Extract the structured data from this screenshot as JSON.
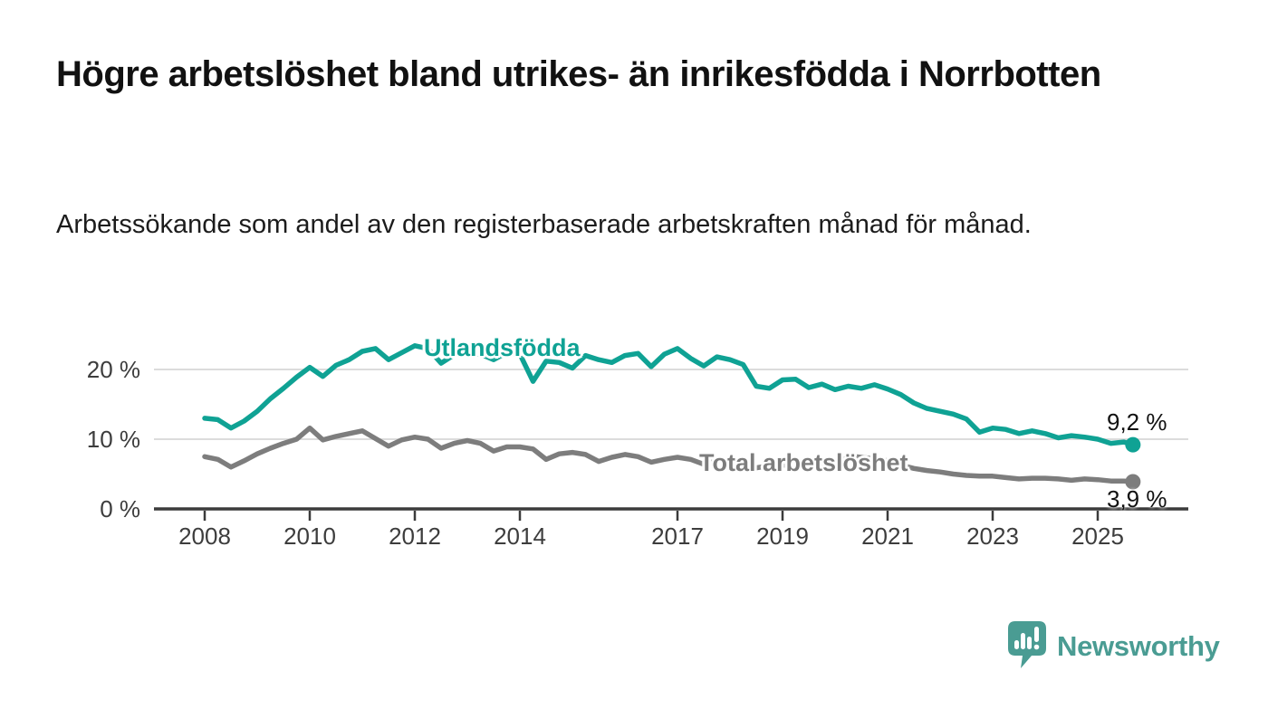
{
  "title": "Högre arbetslöshet bland utrikes- än inrikesfödda i Norrbotten",
  "subtitle": "Arbetssökande som andel av den registerbaserade arbetskraften månad för månad.",
  "branding": {
    "name": "Newsworthy",
    "logo_icon": "newsworthy-speech-bubble-bar-chart"
  },
  "colors": {
    "series_foreign_born": "#0fa294",
    "series_total": "#7d7d7d",
    "gridline": "#dcdcdc",
    "axis": "#3b3b3b",
    "tick_label": "#3d3d3d",
    "title_text": "#111111",
    "brand_teal": "#4a9c93"
  },
  "chart_data": {
    "type": "line",
    "title": "Högre arbetslöshet bland utrikes- än inrikesfödda i Norrbotten",
    "subtitle": "Arbetssökande som andel av den registerbaserade arbetskraften månad för månad.",
    "x_unit": "decimal_year",
    "x_ticks": [
      2008,
      2010,
      2012,
      2014,
      2017,
      2019,
      2021,
      2023,
      2025
    ],
    "xlim": [
      2007.2,
      2026.7
    ],
    "ylim": [
      0,
      25
    ],
    "y_ticks": [
      0,
      10,
      20
    ],
    "y_tick_labels": [
      "0 %",
      "10 %",
      "20 %"
    ],
    "grid": "horizontal-only",
    "legend_position": "inline-on-line",
    "series": [
      {
        "name": "Utlandsfödda",
        "color": "#0fa294",
        "end_value": 9.2,
        "end_label": "9,2 %",
        "points": [
          [
            2008.0,
            13.0
          ],
          [
            2008.25,
            12.8
          ],
          [
            2008.5,
            11.6
          ],
          [
            2008.75,
            12.6
          ],
          [
            2009.0,
            14.0
          ],
          [
            2009.25,
            15.8
          ],
          [
            2009.5,
            17.3
          ],
          [
            2009.75,
            18.9
          ],
          [
            2010.0,
            20.3
          ],
          [
            2010.25,
            19.0
          ],
          [
            2010.5,
            20.6
          ],
          [
            2010.75,
            21.4
          ],
          [
            2011.0,
            22.6
          ],
          [
            2011.25,
            23.0
          ],
          [
            2011.5,
            21.4
          ],
          [
            2011.75,
            22.4
          ],
          [
            2012.0,
            23.4
          ],
          [
            2012.25,
            23.0
          ],
          [
            2012.5,
            20.9
          ],
          [
            2012.75,
            22.1
          ],
          [
            2013.0,
            22.6
          ],
          [
            2013.25,
            22.2
          ],
          [
            2013.5,
            21.4
          ],
          [
            2013.75,
            22.4
          ],
          [
            2014.0,
            22.2
          ],
          [
            2014.25,
            18.3
          ],
          [
            2014.5,
            21.2
          ],
          [
            2014.75,
            21.0
          ],
          [
            2015.0,
            20.2
          ],
          [
            2015.25,
            22.0
          ],
          [
            2015.5,
            21.4
          ],
          [
            2015.75,
            21.0
          ],
          [
            2016.0,
            22.0
          ],
          [
            2016.25,
            22.3
          ],
          [
            2016.5,
            20.4
          ],
          [
            2016.75,
            22.2
          ],
          [
            2017.0,
            23.0
          ],
          [
            2017.25,
            21.6
          ],
          [
            2017.5,
            20.5
          ],
          [
            2017.75,
            21.8
          ],
          [
            2018.0,
            21.4
          ],
          [
            2018.25,
            20.7
          ],
          [
            2018.5,
            17.6
          ],
          [
            2018.75,
            17.3
          ],
          [
            2019.0,
            18.5
          ],
          [
            2019.25,
            18.6
          ],
          [
            2019.5,
            17.4
          ],
          [
            2019.75,
            17.9
          ],
          [
            2020.0,
            17.1
          ],
          [
            2020.25,
            17.6
          ],
          [
            2020.5,
            17.3
          ],
          [
            2020.75,
            17.8
          ],
          [
            2021.0,
            17.2
          ],
          [
            2021.25,
            16.4
          ],
          [
            2021.5,
            15.2
          ],
          [
            2021.75,
            14.4
          ],
          [
            2022.0,
            14.0
          ],
          [
            2022.25,
            13.6
          ],
          [
            2022.5,
            12.9
          ],
          [
            2022.75,
            11.0
          ],
          [
            2023.0,
            11.6
          ],
          [
            2023.25,
            11.4
          ],
          [
            2023.5,
            10.8
          ],
          [
            2023.75,
            11.2
          ],
          [
            2024.0,
            10.8
          ],
          [
            2024.25,
            10.2
          ],
          [
            2024.5,
            10.5
          ],
          [
            2024.75,
            10.3
          ],
          [
            2025.0,
            10.0
          ],
          [
            2025.25,
            9.4
          ],
          [
            2025.5,
            9.6
          ],
          [
            2025.67,
            9.2
          ]
        ]
      },
      {
        "name": "Total arbetslöshet",
        "color": "#7d7d7d",
        "end_value": 3.9,
        "end_label": "3,9 %",
        "points": [
          [
            2008.0,
            7.5
          ],
          [
            2008.25,
            7.1
          ],
          [
            2008.5,
            6.0
          ],
          [
            2008.75,
            6.9
          ],
          [
            2009.0,
            7.9
          ],
          [
            2009.25,
            8.7
          ],
          [
            2009.5,
            9.4
          ],
          [
            2009.75,
            10.0
          ],
          [
            2010.0,
            11.6
          ],
          [
            2010.25,
            9.9
          ],
          [
            2010.5,
            10.4
          ],
          [
            2010.75,
            10.8
          ],
          [
            2011.0,
            11.2
          ],
          [
            2011.25,
            10.1
          ],
          [
            2011.5,
            9.0
          ],
          [
            2011.75,
            9.9
          ],
          [
            2012.0,
            10.3
          ],
          [
            2012.25,
            10.0
          ],
          [
            2012.5,
            8.7
          ],
          [
            2012.75,
            9.4
          ],
          [
            2013.0,
            9.8
          ],
          [
            2013.25,
            9.4
          ],
          [
            2013.5,
            8.3
          ],
          [
            2013.75,
            8.9
          ],
          [
            2014.0,
            8.9
          ],
          [
            2014.25,
            8.6
          ],
          [
            2014.5,
            7.1
          ],
          [
            2014.75,
            7.9
          ],
          [
            2015.0,
            8.1
          ],
          [
            2015.25,
            7.8
          ],
          [
            2015.5,
            6.8
          ],
          [
            2015.75,
            7.4
          ],
          [
            2016.0,
            7.8
          ],
          [
            2016.25,
            7.5
          ],
          [
            2016.5,
            6.7
          ],
          [
            2016.75,
            7.1
          ],
          [
            2017.0,
            7.4
          ],
          [
            2017.25,
            7.1
          ],
          [
            2017.5,
            6.4
          ],
          [
            2017.75,
            6.9
          ],
          [
            2018.0,
            7.0
          ],
          [
            2018.25,
            6.6
          ],
          [
            2018.5,
            5.9
          ],
          [
            2018.75,
            6.2
          ],
          [
            2019.0,
            6.3
          ],
          [
            2019.25,
            6.1
          ],
          [
            2019.5,
            5.8
          ],
          [
            2019.75,
            6.1
          ],
          [
            2020.0,
            6.4
          ],
          [
            2020.25,
            7.6
          ],
          [
            2020.5,
            7.4
          ],
          [
            2020.75,
            7.2
          ],
          [
            2021.0,
            6.9
          ],
          [
            2021.25,
            6.3
          ],
          [
            2021.5,
            5.8
          ],
          [
            2021.75,
            5.5
          ],
          [
            2022.0,
            5.3
          ],
          [
            2022.25,
            5.0
          ],
          [
            2022.5,
            4.8
          ],
          [
            2022.75,
            4.7
          ],
          [
            2023.0,
            4.7
          ],
          [
            2023.25,
            4.5
          ],
          [
            2023.5,
            4.3
          ],
          [
            2023.75,
            4.4
          ],
          [
            2024.0,
            4.4
          ],
          [
            2024.25,
            4.3
          ],
          [
            2024.5,
            4.1
          ],
          [
            2024.75,
            4.3
          ],
          [
            2025.0,
            4.2
          ],
          [
            2025.25,
            4.0
          ],
          [
            2025.5,
            4.0
          ],
          [
            2025.67,
            3.9
          ]
        ]
      }
    ]
  }
}
